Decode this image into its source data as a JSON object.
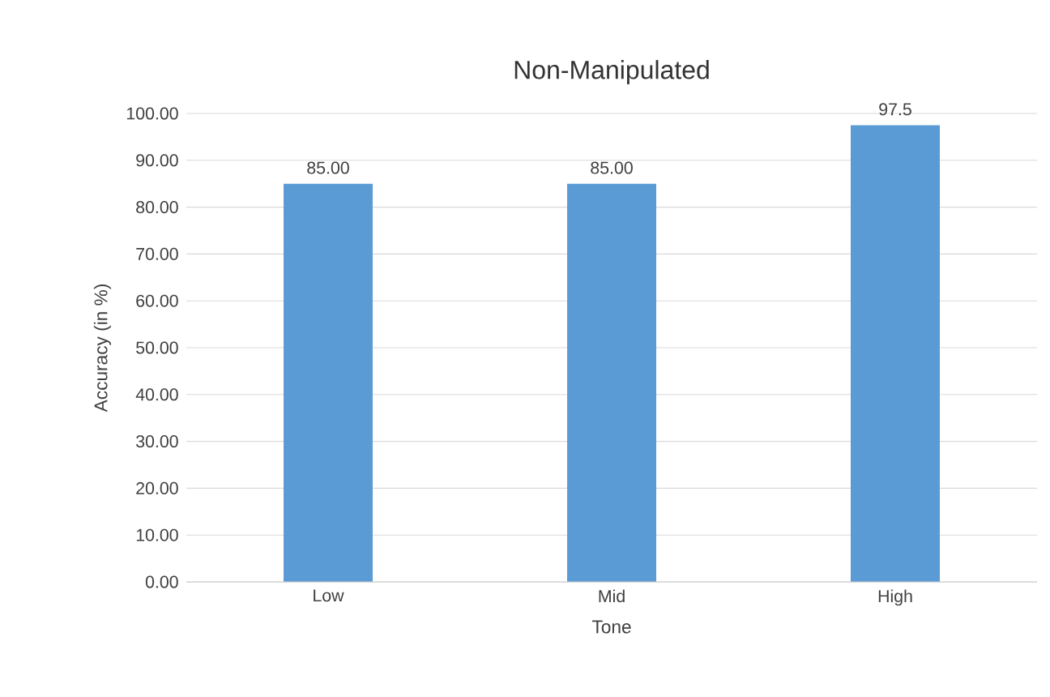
{
  "chart_data": {
    "type": "bar",
    "title": "Non-Manipulated",
    "xlabel": "Tone",
    "ylabel": "Accuracy (in %)",
    "categories": [
      "Low",
      "Mid",
      "High"
    ],
    "values": [
      85.0,
      85.0,
      97.5
    ],
    "value_labels": [
      "85.00",
      "85.00",
      "97.5"
    ],
    "color": "#5b9bd5",
    "ylim": [
      0,
      100
    ],
    "yticks": [
      {
        "value": 0,
        "label": "0.00"
      },
      {
        "value": 10,
        "label": "10.00"
      },
      {
        "value": 20,
        "label": "20.00"
      },
      {
        "value": 30,
        "label": "30.00"
      },
      {
        "value": 40,
        "label": "40.00"
      },
      {
        "value": 50,
        "label": "50.00"
      },
      {
        "value": 60,
        "label": "60.00"
      },
      {
        "value": 70,
        "label": "70.00"
      },
      {
        "value": 80,
        "label": "80.00"
      },
      {
        "value": 90,
        "label": "90.00"
      },
      {
        "value": 100,
        "label": "100.00"
      }
    ],
    "grid": "y"
  }
}
